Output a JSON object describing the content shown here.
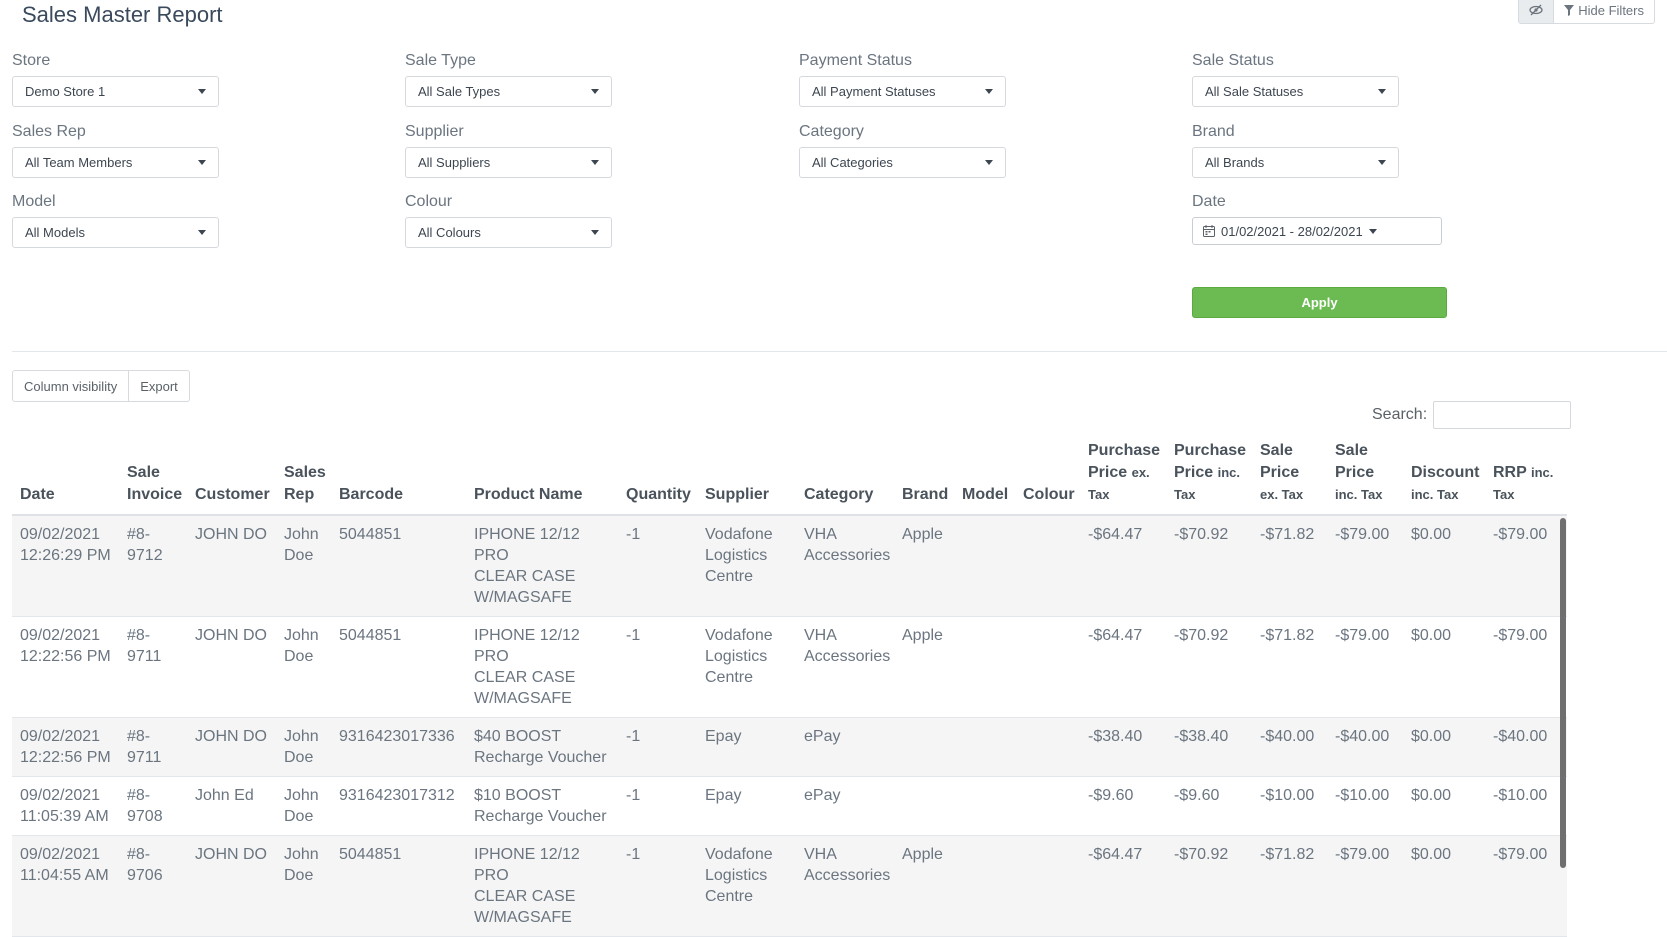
{
  "page": {
    "title": "Sales Master Report"
  },
  "toolbar": {
    "hide_filters_label": "Hide Filters"
  },
  "filters": {
    "store": {
      "label": "Store",
      "value": "Demo Store 1"
    },
    "sale_type": {
      "label": "Sale Type",
      "value": "All Sale Types"
    },
    "payment_status": {
      "label": "Payment Status",
      "value": "All Payment Statuses"
    },
    "sale_status": {
      "label": "Sale Status",
      "value": "All Sale Statuses"
    },
    "sales_rep": {
      "label": "Sales Rep",
      "value": "All Team Members"
    },
    "supplier": {
      "label": "Supplier",
      "value": "All Suppliers"
    },
    "category": {
      "label": "Category",
      "value": "All Categories"
    },
    "brand": {
      "label": "Brand",
      "value": "All Brands"
    },
    "model": {
      "label": "Model",
      "value": "All Models"
    },
    "colour": {
      "label": "Colour",
      "value": "All Colours"
    },
    "date": {
      "label": "Date",
      "value": "01/02/2021 - 28/02/2021"
    },
    "apply_label": "Apply"
  },
  "table_controls": {
    "column_visibility": "Column visibility",
    "export": "Export",
    "search_label": "Search:",
    "search_value": ""
  },
  "table": {
    "headers": {
      "date": "Date",
      "sale_invoice_1": "Sale",
      "sale_invoice_2": "Invoice",
      "customer": "Customer",
      "sales_rep_1": "Sales",
      "sales_rep_2": "Rep",
      "barcode": "Barcode",
      "product_name": "Product Name",
      "quantity": "Quantity",
      "supplier": "Supplier",
      "category": "Category",
      "brand": "Brand",
      "model": "Model",
      "colour": "Colour",
      "purchase_ex_1": "Purchase",
      "purchase_ex_2": "Price",
      "purchase_ex_3": "ex.",
      "purchase_ex_4": "Tax",
      "purchase_inc_1": "Purchase",
      "purchase_inc_2": "Price",
      "purchase_inc_3": "inc.",
      "purchase_inc_4": "Tax",
      "sale_ex_1": "Sale",
      "sale_ex_2": "Price",
      "sale_ex_3": "ex. Tax",
      "sale_inc_1": "Sale",
      "sale_inc_2": "Price",
      "sale_inc_3": "inc. Tax",
      "discount_1": "Discount",
      "discount_2": "inc. Tax",
      "rrp_1": "RRP",
      "rrp_2": "inc.",
      "rrp_3": "Tax"
    },
    "rows": [
      {
        "date_1": "09/02/2021",
        "date_2": "12:26:29 PM",
        "invoice_1": "#8-",
        "invoice_2": "9712",
        "customer": "JOHN DO",
        "rep_1": "John",
        "rep_2": "Doe",
        "barcode": "5044851",
        "product_1": "IPHONE 12/12 PRO",
        "product_2": "CLEAR CASE",
        "product_3": "W/MAGSAFE",
        "quantity": "-1",
        "supplier_1": "Vodafone",
        "supplier_2": "Logistics",
        "supplier_3": "Centre",
        "category_1": "VHA",
        "category_2": "Accessories",
        "brand": "Apple",
        "model": "",
        "colour": "",
        "purchase_ex": "-$64.47",
        "purchase_inc": "-$70.92",
        "sale_ex": "-$71.82",
        "sale_inc": "-$79.00",
        "discount": "$0.00",
        "rrp": "-$79.00"
      },
      {
        "date_1": "09/02/2021",
        "date_2": "12:22:56 PM",
        "invoice_1": "#8-",
        "invoice_2": "9711",
        "customer": "JOHN DO",
        "rep_1": "John",
        "rep_2": "Doe",
        "barcode": "5044851",
        "product_1": "IPHONE 12/12 PRO",
        "product_2": "CLEAR CASE",
        "product_3": "W/MAGSAFE",
        "quantity": "-1",
        "supplier_1": "Vodafone",
        "supplier_2": "Logistics",
        "supplier_3": "Centre",
        "category_1": "VHA",
        "category_2": "Accessories",
        "brand": "Apple",
        "model": "",
        "colour": "",
        "purchase_ex": "-$64.47",
        "purchase_inc": "-$70.92",
        "sale_ex": "-$71.82",
        "sale_inc": "-$79.00",
        "discount": "$0.00",
        "rrp": "-$79.00"
      },
      {
        "date_1": "09/02/2021",
        "date_2": "12:22:56 PM",
        "invoice_1": "#8-",
        "invoice_2": "9711",
        "customer": "JOHN DO",
        "rep_1": "John",
        "rep_2": "Doe",
        "barcode": "9316423017336",
        "product_1": "$40 BOOST",
        "product_2": "Recharge Voucher",
        "product_3": "",
        "quantity": "-1",
        "supplier_1": "Epay",
        "supplier_2": "",
        "supplier_3": "",
        "category_1": "ePay",
        "category_2": "",
        "brand": "",
        "model": "",
        "colour": "",
        "purchase_ex": "-$38.40",
        "purchase_inc": "-$38.40",
        "sale_ex": "-$40.00",
        "sale_inc": "-$40.00",
        "discount": "$0.00",
        "rrp": "-$40.00"
      },
      {
        "date_1": "09/02/2021",
        "date_2": "11:05:39 AM",
        "invoice_1": "#8-",
        "invoice_2": "9708",
        "customer": "John Ed",
        "rep_1": "John",
        "rep_2": "Doe",
        "barcode": "9316423017312",
        "product_1": "$10 BOOST",
        "product_2": "Recharge Voucher",
        "product_3": "",
        "quantity": "-1",
        "supplier_1": "Epay",
        "supplier_2": "",
        "supplier_3": "",
        "category_1": "ePay",
        "category_2": "",
        "brand": "",
        "model": "",
        "colour": "",
        "purchase_ex": "-$9.60",
        "purchase_inc": "-$9.60",
        "sale_ex": "-$10.00",
        "sale_inc": "-$10.00",
        "discount": "$0.00",
        "rrp": "-$10.00"
      },
      {
        "date_1": "09/02/2021",
        "date_2": "11:04:55 AM",
        "invoice_1": "#8-",
        "invoice_2": "9706",
        "customer": "JOHN DO",
        "rep_1": "John",
        "rep_2": "Doe",
        "barcode": "5044851",
        "product_1": "IPHONE 12/12 PRO",
        "product_2": "CLEAR CASE",
        "product_3": "W/MAGSAFE",
        "quantity": "-1",
        "supplier_1": "Vodafone",
        "supplier_2": "Logistics",
        "supplier_3": "Centre",
        "category_1": "VHA",
        "category_2": "Accessories",
        "brand": "Apple",
        "model": "",
        "colour": "",
        "purchase_ex": "-$64.47",
        "purchase_inc": "-$70.92",
        "sale_ex": "-$71.82",
        "sale_inc": "-$79.00",
        "discount": "$0.00",
        "rrp": "-$79.00"
      }
    ]
  }
}
